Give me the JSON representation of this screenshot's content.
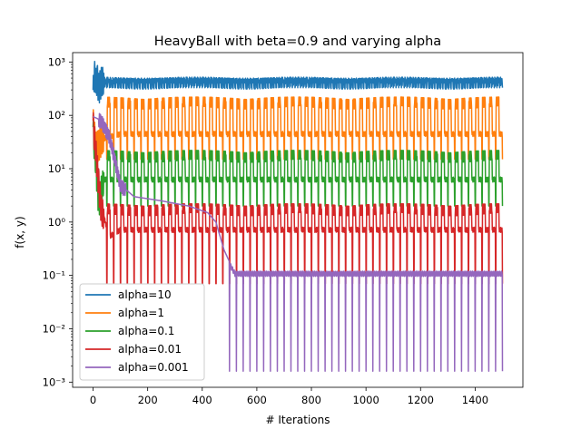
{
  "chart_data": {
    "type": "line",
    "title": "HeavyBall with beta=0.9 and varying alpha",
    "xlabel": "# Iterations",
    "ylabel": "f(x, y)",
    "xscale": "linear",
    "yscale": "log",
    "xlim": [
      -75,
      1575
    ],
    "ylim": [
      0.0008,
      1500
    ],
    "xticks": [
      0,
      200,
      400,
      600,
      800,
      1000,
      1200,
      1400
    ],
    "xtick_labels": [
      "0",
      "200",
      "400",
      "600",
      "800",
      "1000",
      "1200",
      "1400"
    ],
    "yticks": [
      0.001,
      0.01,
      0.1,
      1,
      10,
      100,
      1000
    ],
    "ytick_labels": [
      "10⁻³",
      "10⁻²",
      "10⁻¹",
      "10⁰",
      "10¹",
      "10²",
      "10³"
    ],
    "grid": false,
    "legend_position": "lower-left",
    "series": [
      {
        "name": "alpha=10",
        "color": "#1f77b4",
        "period": 10,
        "samples": [
          [
            0,
            300
          ],
          [
            5,
            700
          ],
          [
            10,
            450
          ],
          [
            15,
            600
          ],
          [
            20,
            400
          ],
          [
            30,
            500
          ],
          [
            50,
            480
          ],
          [
            100,
            500
          ],
          [
            300,
            500
          ],
          [
            1500,
            500
          ]
        ],
        "band": [
          330,
          520
        ]
      },
      {
        "name": "alpha=1",
        "color": "#ff7f0e",
        "period": 25,
        "samples": [
          [
            0,
            90
          ],
          [
            10,
            30
          ],
          [
            30,
            40
          ],
          [
            100,
            50
          ],
          [
            1500,
            50
          ]
        ],
        "band": [
          15,
          220
        ]
      },
      {
        "name": "alpha=0.1",
        "color": "#2ca02c",
        "period": 25,
        "samples": [
          [
            0,
            60
          ],
          [
            20,
            3
          ],
          [
            40,
            7
          ],
          [
            100,
            7
          ],
          [
            1500,
            7
          ]
        ],
        "band": [
          2,
          22
        ]
      },
      {
        "name": "alpha=0.01",
        "color": "#d62728",
        "period": 25,
        "samples": [
          [
            0,
            80
          ],
          [
            30,
            2
          ],
          [
            60,
            0.6
          ],
          [
            100,
            0.8
          ],
          [
            1500,
            0.8
          ]
        ],
        "band": [
          0.07,
          2.2
        ]
      },
      {
        "name": "alpha=0.001",
        "color": "#9467bd",
        "samples": [
          [
            0,
            95
          ],
          [
            30,
            80
          ],
          [
            60,
            40
          ],
          [
            80,
            15
          ],
          [
            100,
            5
          ],
          [
            150,
            3
          ],
          [
            250,
            2.5
          ],
          [
            350,
            2
          ],
          [
            420,
            1.5
          ],
          [
            450,
            1
          ],
          [
            480,
            0.3
          ],
          [
            500,
            0.18
          ],
          [
            520,
            0.12
          ],
          [
            1500,
            0.12
          ]
        ],
        "spikes_from": 500,
        "period": 25,
        "spike_min": 0.0016
      }
    ]
  }
}
